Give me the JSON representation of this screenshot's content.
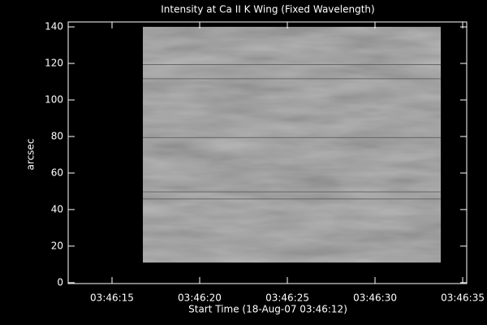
{
  "chart_data": {
    "type": "image",
    "title": "Intensity at Ca II K Wing (Fixed Wavelength)",
    "xlabel": "Start Time (18-Aug-07 03:46:12)",
    "ylabel": "arcsec",
    "xlim": [
      0.5,
      23.23
    ],
    "xticks": [
      {
        "value": 3,
        "label": "03:46:15"
      },
      {
        "value": 8,
        "label": "03:46:20"
      },
      {
        "value": 13,
        "label": "03:46:25"
      },
      {
        "value": 18,
        "label": "03:46:30"
      },
      {
        "value": 23,
        "label": "03:46:35"
      }
    ],
    "ylim": [
      -0.5,
      142.7
    ],
    "yticks": [
      0,
      20,
      40,
      60,
      80,
      100,
      120,
      140
    ],
    "image": {
      "xlim": [
        4.76,
        21.75
      ],
      "ylim": [
        11,
        140
      ],
      "color": "#8c8c8c"
    }
  }
}
